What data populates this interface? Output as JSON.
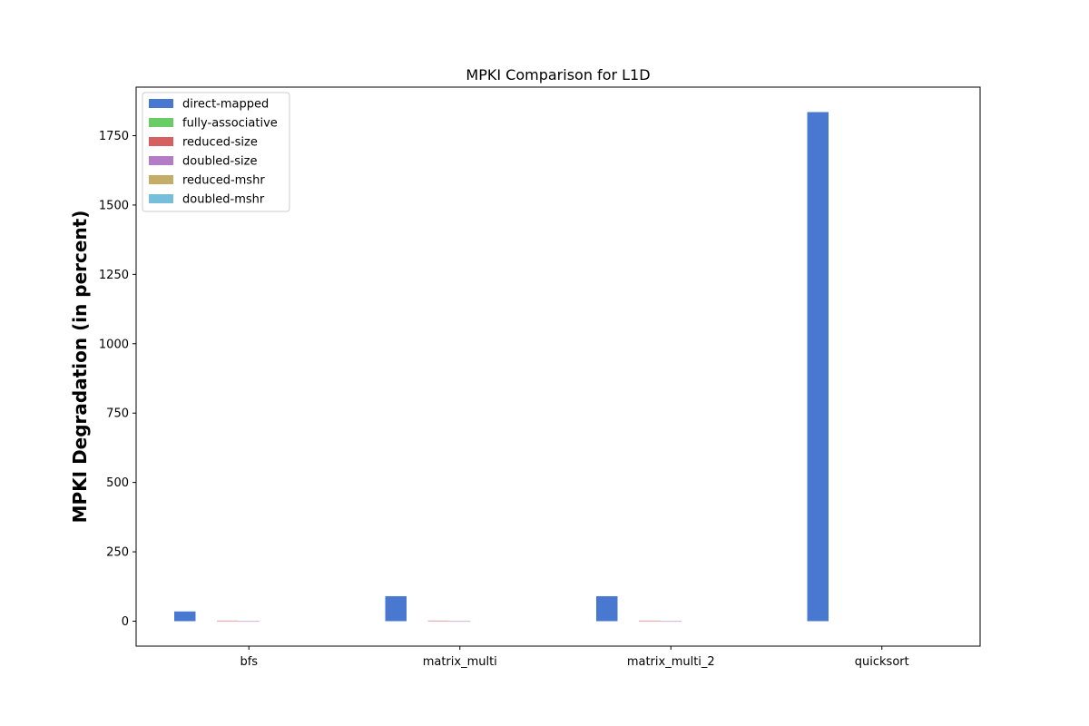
{
  "chart_data": {
    "type": "bar",
    "title": "MPKI Comparison for L1D",
    "xlabel": "",
    "ylabel": "MPKI Degradation (in percent)",
    "categories": [
      "bfs",
      "matrix_multi",
      "matrix_multi_2",
      "quicksort"
    ],
    "ylim": [
      -90,
      1925
    ],
    "yticks": [
      0,
      250,
      500,
      750,
      1000,
      1250,
      1500,
      1750
    ],
    "legend_position": "top-left",
    "grid": false,
    "series": [
      {
        "name": "direct-mapped",
        "color": "#4878d0",
        "values": [
          35,
          90,
          90,
          1835
        ]
      },
      {
        "name": "fully-associative",
        "color": "#6acc64",
        "values": [
          0,
          0,
          0,
          0
        ]
      },
      {
        "name": "reduced-size",
        "color": "#d65f5f",
        "values": [
          2,
          2,
          2,
          0
        ]
      },
      {
        "name": "doubled-size",
        "color": "#b47cc7",
        "values": [
          -2,
          -2,
          -2,
          0
        ]
      },
      {
        "name": "reduced-mshr",
        "color": "#c4ad66",
        "values": [
          0,
          0,
          0,
          0
        ]
      },
      {
        "name": "doubled-mshr",
        "color": "#77bedb",
        "values": [
          0,
          0,
          0,
          0
        ]
      }
    ]
  }
}
